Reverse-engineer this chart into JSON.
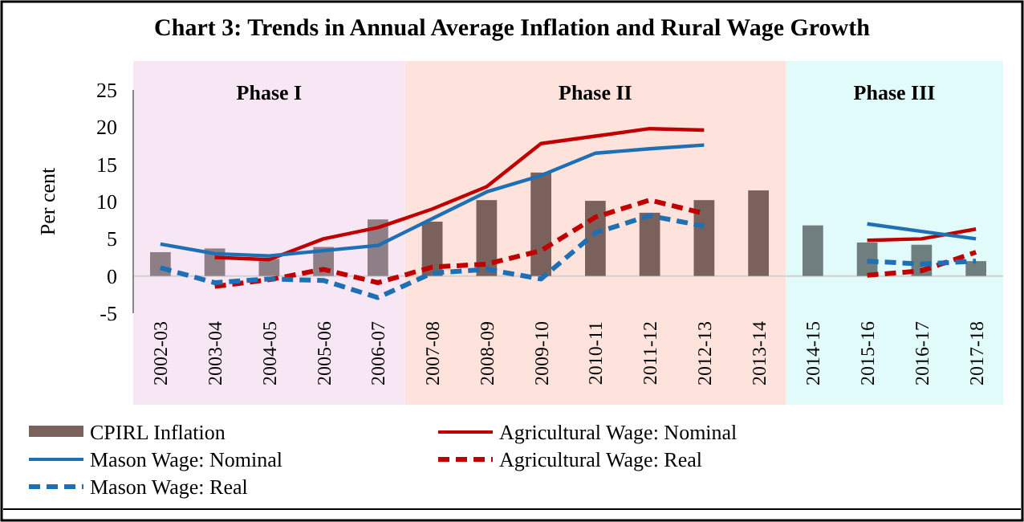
{
  "chart_data": {
    "type": "bar",
    "title": "Chart 3: Trends in Annual Average Inflation and Rural Wage Growth",
    "ylabel": "Per cent",
    "categories": [
      "2002-03",
      "2003-04",
      "2004-05",
      "2005-06",
      "2006-07",
      "2007-08",
      "2008-09",
      "2009-10",
      "2010-11",
      "2011-12",
      "2012-13",
      "2013-14",
      "2014-15",
      "2015-16",
      "2016-17",
      "2017-18"
    ],
    "series": [
      {
        "name": "CPIRL Inflation",
        "color": "#7b615c",
        "colors": [
          "#8e7f86",
          "#8e7f86",
          "#8e7f86",
          "#8e7f86",
          "#8e7f86",
          "#7b615c",
          "#7b615c",
          "#7b615c",
          "#7b615c",
          "#7b615c",
          "#7b615c",
          "#7b615c",
          "#6f7f80",
          "#6f7f80",
          "#6f7f80",
          "#6f7f80"
        ],
        "values": [
          3.2,
          3.7,
          2.3,
          3.9,
          7.6,
          7.3,
          10.2,
          13.9,
          10.1,
          8.5,
          10.2,
          11.5,
          6.8,
          4.5,
          4.2,
          2.0
        ]
      },
      {
        "name": "Agricultural Wage: Nominal",
        "type": "line",
        "color": "#c00000",
        "line_style": "solid",
        "values": [
          null,
          2.5,
          2.2,
          5.0,
          6.5,
          9.0,
          12.0,
          17.8,
          18.8,
          19.8,
          19.6,
          null,
          null,
          4.8,
          5.0,
          6.3
        ]
      },
      {
        "name": "Mason Wage: Nominal",
        "type": "line",
        "color": "#1f6fb4",
        "line_style": "solid",
        "values": [
          4.3,
          3.0,
          2.7,
          3.4,
          4.1,
          7.7,
          11.3,
          13.5,
          16.5,
          17.1,
          17.6,
          null,
          null,
          7.0,
          6.0,
          5.0
        ]
      },
      {
        "name": "Agricultural Wage: Real",
        "type": "line",
        "color": "#c00000",
        "line_style": "dashed",
        "values": [
          null,
          -1.4,
          -0.5,
          0.9,
          -0.9,
          1.2,
          1.6,
          3.4,
          7.9,
          10.2,
          8.4,
          null,
          null,
          0.1,
          0.7,
          3.2
        ]
      },
      {
        "name": "Mason Wage: Real",
        "type": "line",
        "color": "#1f6fb4",
        "line_style": "dashed",
        "values": [
          1.1,
          -0.9,
          -0.4,
          -0.6,
          -2.9,
          0.4,
          0.9,
          -0.4,
          5.8,
          8.1,
          6.7,
          null,
          null,
          2.0,
          1.6,
          2.0
        ]
      }
    ],
    "bands": [
      {
        "axis": "x",
        "from": "2002-03",
        "to": "2006-07",
        "label": "Phase I",
        "color": "#f7e6f3"
      },
      {
        "axis": "x",
        "from": "2007-08",
        "to": "2013-14",
        "label": "Phase II",
        "color": "#fde3dc"
      },
      {
        "axis": "x",
        "from": "2014-15",
        "to": "2017-18",
        "label": "Phase III",
        "color": "#e1fbfb"
      }
    ],
    "ylim": [
      -5,
      25
    ],
    "yticks": [
      -5,
      0,
      5,
      10,
      15,
      20,
      25
    ],
    "grid": false,
    "legend": "bottom"
  }
}
